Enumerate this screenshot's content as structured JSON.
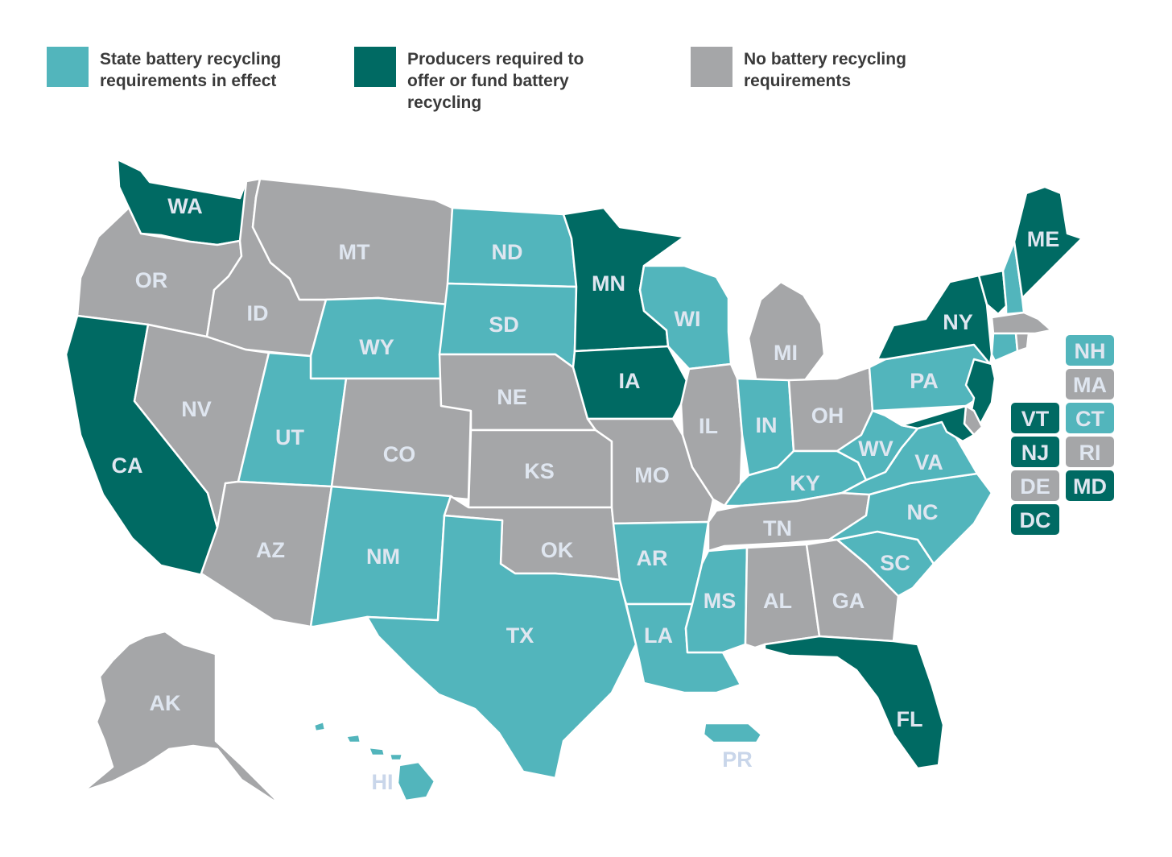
{
  "colors": {
    "state_requirements": "#52b5bc",
    "producer_required": "#006a63",
    "no_requirements": "#a5a6a8",
    "label_text": "#dfe6f0",
    "outside_label": "#c9d6ea"
  },
  "legend": [
    {
      "key": "state_requirements",
      "label": "State battery recycling\nrequirements in effect"
    },
    {
      "key": "producer_required",
      "label": "Producers required to\noffer or fund battery\nrecycling"
    },
    {
      "key": "no_requirements",
      "label": "No battery recycling\nrequirements"
    }
  ],
  "states": {
    "WA": "producer_required",
    "OR": "no_requirements",
    "CA": "producer_required",
    "ID": "no_requirements",
    "NV": "no_requirements",
    "MT": "no_requirements",
    "WY": "state_requirements",
    "UT": "state_requirements",
    "AZ": "no_requirements",
    "CO": "no_requirements",
    "NM": "state_requirements",
    "ND": "state_requirements",
    "SD": "state_requirements",
    "NE": "no_requirements",
    "KS": "no_requirements",
    "OK": "no_requirements",
    "TX": "state_requirements",
    "MN": "producer_required",
    "IA": "producer_required",
    "MO": "no_requirements",
    "AR": "state_requirements",
    "LA": "state_requirements",
    "WI": "state_requirements",
    "IL": "no_requirements",
    "MI": "no_requirements",
    "IN": "state_requirements",
    "OH": "no_requirements",
    "KY": "state_requirements",
    "TN": "no_requirements",
    "MS": "state_requirements",
    "AL": "no_requirements",
    "GA": "no_requirements",
    "FL": "producer_required",
    "SC": "state_requirements",
    "NC": "state_requirements",
    "VA": "state_requirements",
    "WV": "state_requirements",
    "PA": "state_requirements",
    "NY": "producer_required",
    "VT": "producer_required",
    "NH": "state_requirements",
    "ME": "producer_required",
    "MA": "no_requirements",
    "CT": "state_requirements",
    "RI": "no_requirements",
    "NJ": "producer_required",
    "DE": "no_requirements",
    "MD": "producer_required",
    "DC": "producer_required",
    "AK": "no_requirements",
    "HI": "state_requirements",
    "PR": "state_requirements"
  },
  "map_labels": [
    "WA",
    "OR",
    "CA",
    "ID",
    "NV",
    "MT",
    "WY",
    "UT",
    "AZ",
    "CO",
    "NM",
    "ND",
    "SD",
    "NE",
    "KS",
    "OK",
    "TX",
    "MN",
    "IA",
    "MO",
    "AR",
    "LA",
    "WI",
    "IL",
    "MI",
    "IN",
    "OH",
    "KY",
    "TN",
    "MS",
    "AL",
    "GA",
    "FL",
    "SC",
    "NC",
    "VA",
    "WV",
    "PA",
    "NY",
    "ME",
    "AK"
  ],
  "outside_labels": [
    "HI",
    "PR"
  ],
  "small_state_boxes": [
    "NH",
    "MA",
    "VT",
    "CT",
    "NJ",
    "RI",
    "DE",
    "MD",
    "DC"
  ]
}
